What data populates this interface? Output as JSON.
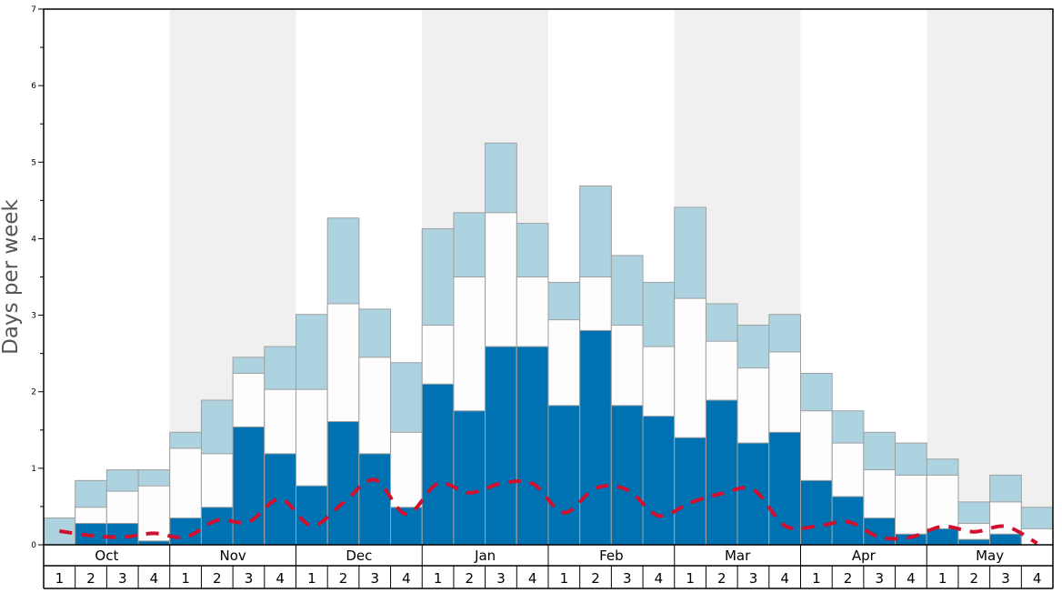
{
  "chart_data": {
    "type": "bar",
    "ylabel": "Days per week",
    "ylim": [
      0,
      7
    ],
    "y_ticks": [
      0,
      1,
      2,
      3,
      4,
      5,
      6,
      7
    ],
    "months": [
      "Oct",
      "Nov",
      "Dec",
      "Jan",
      "Feb",
      "Mar",
      "Apr",
      "May"
    ],
    "weeks": [
      "1",
      "2",
      "3",
      "4"
    ],
    "colors": {
      "dark": "#0072b2",
      "mid": "#fdfdfd",
      "light": "#add3e0",
      "line": "#d0102e",
      "shade": "#f0f0f0",
      "bar_border": "#a0a0a0"
    },
    "series": [
      {
        "values": [
          0.0,
          0.28,
          0.28,
          0.05,
          0.35,
          0.49,
          1.54,
          1.19,
          0.77,
          1.61,
          1.19,
          0.49,
          2.1,
          1.75,
          2.59,
          2.59,
          1.82,
          2.8,
          1.82,
          1.68,
          1.4,
          1.89,
          1.33,
          1.47,
          0.84,
          0.63,
          0.35,
          0.14,
          0.21,
          0.07,
          0.14,
          0.0
        ]
      },
      {
        "values": [
          0.0,
          0.49,
          0.7,
          0.77,
          1.26,
          1.19,
          2.24,
          2.03,
          2.03,
          3.15,
          2.45,
          1.47,
          2.87,
          3.5,
          4.34,
          3.5,
          2.94,
          3.5,
          2.87,
          2.59,
          3.22,
          2.66,
          2.31,
          2.52,
          1.75,
          1.33,
          0.98,
          0.91,
          0.91,
          0.28,
          0.56,
          0.21
        ]
      },
      {
        "values": [
          0.35,
          0.84,
          0.98,
          0.98,
          1.47,
          1.89,
          2.45,
          2.59,
          3.01,
          4.27,
          3.08,
          2.38,
          4.13,
          4.34,
          5.25,
          4.2,
          3.43,
          4.69,
          3.78,
          3.43,
          4.41,
          3.15,
          2.87,
          3.01,
          2.24,
          1.75,
          1.47,
          1.33,
          1.12,
          0.56,
          0.91,
          0.49
        ]
      },
      {
        "values": [
          0.18,
          0.12,
          0.1,
          0.15,
          0.1,
          0.32,
          0.3,
          0.6,
          0.25,
          0.55,
          0.85,
          0.4,
          0.8,
          0.68,
          0.8,
          0.8,
          0.42,
          0.74,
          0.72,
          0.38,
          0.55,
          0.67,
          0.72,
          0.25,
          0.24,
          0.3,
          0.1,
          0.1,
          0.24,
          0.17,
          0.24,
          0.02
        ]
      }
    ]
  }
}
